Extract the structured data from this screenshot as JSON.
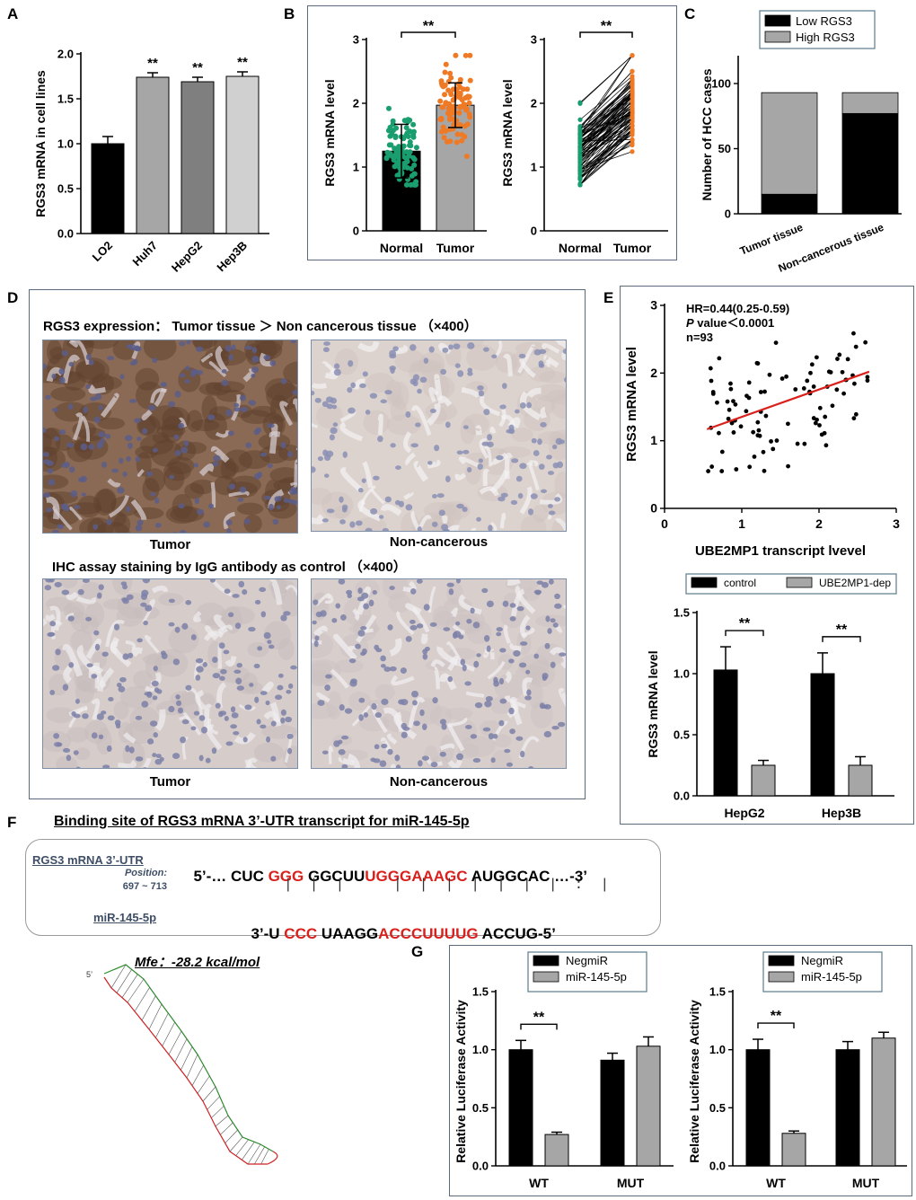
{
  "panels": {
    "A": "A",
    "B": "B",
    "C": "C",
    "D": "D",
    "E": "E",
    "F": "F",
    "G": "G"
  },
  "panel_d": {
    "title1": "RGS3 expression： Tumor tissue ＞ Non cancerous tissue （×400）",
    "title2": "IHC assay staining by IgG antibody as control （×400）",
    "cap_tumor_1": "Tumor",
    "cap_noncancer_1": "Non-cancerous",
    "cap_tumor_2": "Tumor",
    "cap_noncancer_2": "Non-cancerous"
  },
  "panel_f": {
    "title": "Binding site of RGS3 mRNA 3’-UTR transcript for miR-145-5p",
    "utr_label": "RGS3 mRNA 3’-UTR",
    "position_label": "Position:",
    "position_range": "697 ~ 713",
    "mir_label": "miR-145-5p",
    "utr_seq": [
      "5’-… CUC ",
      "GGG",
      " GGCUU",
      "UGGGAAAGC",
      " AUGGCAC …-3’"
    ],
    "mir_seq": [
      "3’-U ",
      "CCC",
      " UAAGG",
      "ACCCUUUUG",
      " ACCUG-5’"
    ],
    "pairs1": "|  |  |",
    "pairs2": "|  |  |  |  |  |  |  :  |",
    "mfe": "Mfe：-28.2 kcal/mol",
    "hairpin_start": "5’"
  },
  "colors": {
    "black": "#000000",
    "gray_mid": "#a6a6a6",
    "gray_dark": "#7f7f7f",
    "gray_light": "#d0d0d0",
    "normal_green": "#1a9e6f",
    "tumor_orange": "#ef7a26",
    "fit_red": "#d9201c"
  },
  "chart_data": [
    {
      "id": "A",
      "type": "bar",
      "ylabel": "RGS3 mRNA in cell lines",
      "categories": [
        "LO2",
        "Huh7",
        "HepG2",
        "Hep3B"
      ],
      "values": [
        1.0,
        1.74,
        1.69,
        1.75
      ],
      "errors": [
        0.08,
        0.05,
        0.05,
        0.05
      ],
      "bar_colors": [
        "#000000",
        "#a6a6a6",
        "#7f7f7f",
        "#d0d0d0"
      ],
      "significance": [
        "",
        "**",
        "**",
        "**"
      ],
      "ylim": [
        0,
        2.0
      ],
      "yticks": [
        "0.0",
        "0.5",
        "1.0",
        "1.5",
        "2.0"
      ]
    },
    {
      "id": "B-left",
      "type": "bar",
      "ylabel": "RGS3 mRNA level",
      "categories": [
        "Normal",
        "Tumor"
      ],
      "values": [
        1.25,
        1.97
      ],
      "errors": [
        0.42,
        0.35
      ],
      "point_range_normal": [
        0.72,
        2.1
      ],
      "point_range_tumor": [
        1.05,
        2.75
      ],
      "ylim": [
        0,
        3
      ],
      "yticks": [
        "0",
        "1",
        "2",
        "3"
      ],
      "significance": "**"
    },
    {
      "id": "B-right",
      "type": "line",
      "ylabel": "RGS3 mRNA level",
      "categories": [
        "Normal",
        "Tumor"
      ],
      "ylim": [
        0,
        3
      ],
      "yticks": [
        "0",
        "1",
        "2",
        "3"
      ],
      "significance": "**"
    },
    {
      "id": "C",
      "type": "bar",
      "ylabel": "Number of HCC cases",
      "categories": [
        "Tumor tissue",
        "Non-cancerous tissue"
      ],
      "series": [
        {
          "name": "Low RGS3",
          "values": [
            15,
            77
          ]
        },
        {
          "name": "High RGS3",
          "values": [
            78,
            16
          ]
        }
      ],
      "ylim": [
        0,
        120
      ],
      "yticks": [
        "0",
        "50",
        "100"
      ]
    },
    {
      "id": "E-top",
      "type": "scatter",
      "xlabel": "UBE2MP1 transcript lvevel",
      "ylabel": "RGS3 mRNA level",
      "xlim": [
        0,
        3
      ],
      "ylim": [
        0,
        3
      ],
      "xticks": [
        "0",
        "1",
        "2",
        "3"
      ],
      "yticks": [
        "0",
        "1",
        "2",
        "3"
      ],
      "annot_hr": "HR=0.44(0.25-0.59)",
      "annot_p_italic": "P",
      "annot_p_rest": " value＜0.0001",
      "annot_n": "n=93",
      "fit_line": [
        [
          0.55,
          1.17
        ],
        [
          2.65,
          2.02
        ]
      ]
    },
    {
      "id": "E-bottom",
      "type": "bar",
      "ylabel": "RGS3 mRNA level",
      "categories": [
        "HepG2",
        "Hep3B"
      ],
      "series": [
        {
          "name": "control",
          "values": [
            1.03,
            1.0
          ],
          "errors": [
            0.19,
            0.17
          ]
        },
        {
          "name": "UBE2MP1-dep",
          "values": [
            0.25,
            0.25
          ],
          "errors": [
            0.04,
            0.07
          ]
        }
      ],
      "ylim": [
        0,
        1.5
      ],
      "yticks": [
        "0.0",
        "0.5",
        "1.0",
        "1.5"
      ],
      "significance": [
        "**",
        "**"
      ]
    },
    {
      "id": "G-left",
      "type": "bar",
      "ylabel": "Relative Luciferase Activity",
      "categories": [
        "WT",
        "MUT"
      ],
      "series": [
        {
          "name": "NegmiR",
          "values": [
            1.0,
            0.91
          ],
          "errors": [
            0.08,
            0.06
          ]
        },
        {
          "name": "miR-145-5p",
          "values": [
            0.27,
            1.03
          ],
          "errors": [
            0.02,
            0.08
          ]
        }
      ],
      "ylim": [
        0,
        1.5
      ],
      "yticks": [
        "0.0",
        "0.5",
        "1.0",
        "1.5"
      ],
      "significance": [
        "**",
        ""
      ]
    },
    {
      "id": "G-right",
      "type": "bar",
      "ylabel": "Relative Luciferase Activity",
      "categories": [
        "WT",
        "MUT"
      ],
      "series": [
        {
          "name": "NegmiR",
          "values": [
            1.0,
            1.0
          ],
          "errors": [
            0.09,
            0.07
          ]
        },
        {
          "name": "miR-145-5p",
          "values": [
            0.28,
            1.1
          ],
          "errors": [
            0.02,
            0.05
          ]
        }
      ],
      "ylim": [
        0,
        1.5
      ],
      "yticks": [
        "0.0",
        "0.5",
        "1.0",
        "1.5"
      ],
      "significance": [
        "**",
        ""
      ]
    }
  ]
}
